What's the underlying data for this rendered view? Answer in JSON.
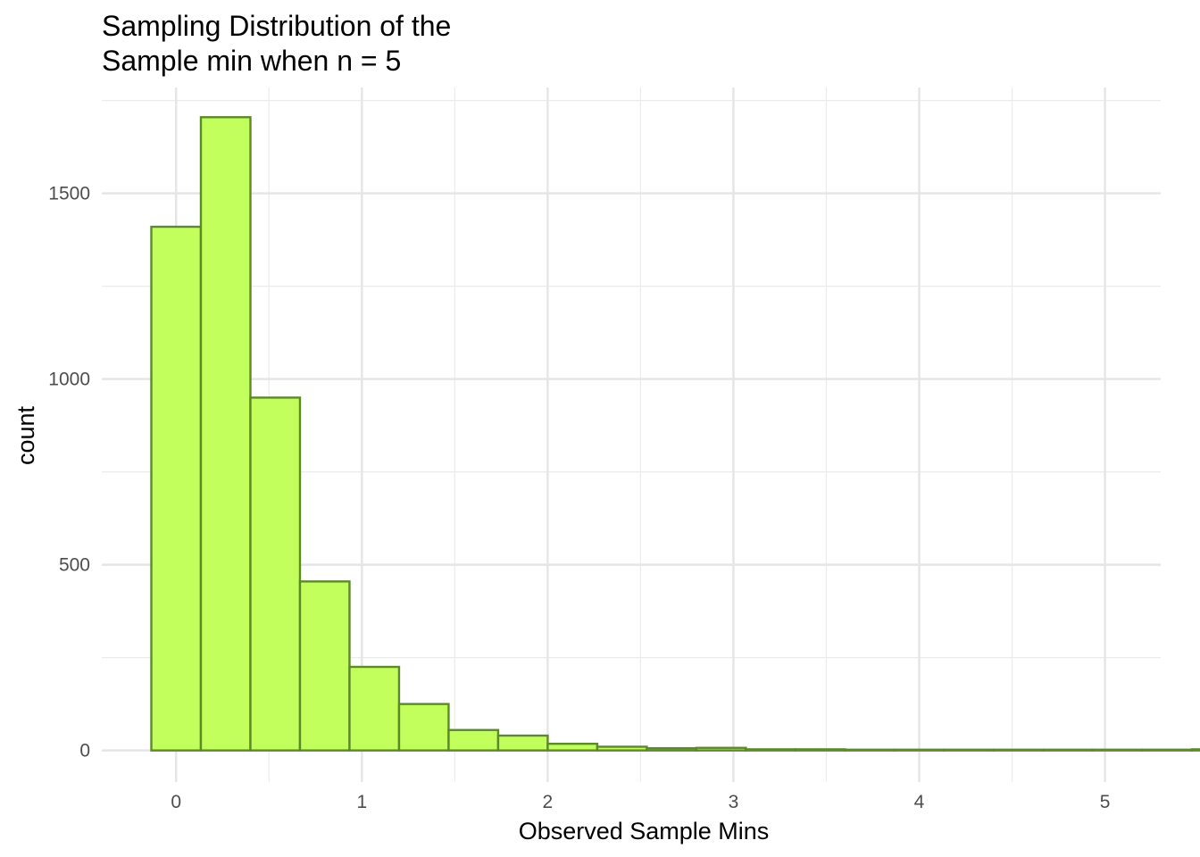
{
  "chart_data": {
    "type": "bar",
    "title_lines": [
      "Sampling Distribution of the",
      "Sample min when n = 5"
    ],
    "xlabel": "Observed Sample Mins",
    "ylabel": "count",
    "xlim": [
      -0.4,
      5.3
    ],
    "ylim": [
      -85,
      1785
    ],
    "x_ticks": [
      0,
      1,
      2,
      3,
      4,
      5
    ],
    "x_tick_labels": [
      "0",
      "1",
      "2",
      "3",
      "4",
      "5"
    ],
    "y_ticks": [
      0,
      500,
      1000,
      1500
    ],
    "y_tick_labels": [
      "0",
      "500",
      "1000",
      "1500"
    ],
    "grid": true,
    "bin_width": 0.2667,
    "bin_start": -0.1333,
    "values": [
      1410,
      1705,
      950,
      455,
      225,
      125,
      55,
      40,
      18,
      10,
      6,
      7,
      3,
      3,
      2,
      2,
      2,
      2,
      2,
      2,
      2,
      3,
      3,
      3,
      3,
      3,
      3,
      3,
      4,
      4,
      4,
      4,
      4,
      4,
      4,
      4,
      4,
      4,
      4,
      4,
      4,
      4,
      4,
      4,
      4,
      4,
      4,
      4,
      4,
      4,
      4,
      4,
      4
    ],
    "fill_color": "#c2ff5c",
    "stroke_color": "#5c8a2a"
  }
}
